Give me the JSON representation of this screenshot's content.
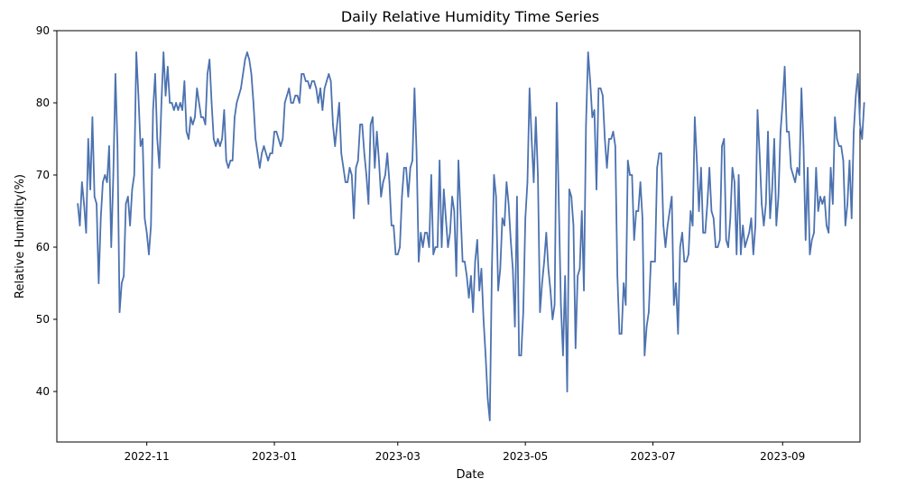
{
  "chart_data": {
    "type": "line",
    "title": "Daily Relative Humidity Time Series",
    "xlabel": "Date",
    "ylabel": "Relative Humidity(%)",
    "ylim": [
      33,
      90
    ],
    "y_ticks": [
      40,
      50,
      60,
      70,
      80,
      90
    ],
    "xlim": [
      "2022-09-19",
      "2023-10-08"
    ],
    "x_ticks": [
      {
        "date": "2022-11-01",
        "label": "2022-11"
      },
      {
        "date": "2023-01-01",
        "label": "2023-01"
      },
      {
        "date": "2023-03-01",
        "label": "2023-03"
      },
      {
        "date": "2023-05-01",
        "label": "2023-05"
      },
      {
        "date": "2023-07-01",
        "label": "2023-07"
      },
      {
        "date": "2023-09-01",
        "label": "2023-09"
      }
    ],
    "grid": false,
    "line_color": "#4c72b0",
    "series": [
      {
        "start_date": "2022-09-29",
        "values": [
          66,
          63,
          69,
          66,
          62,
          75,
          68,
          78,
          67,
          66,
          55,
          64,
          69,
          70,
          69,
          74,
          60,
          70,
          84,
          74,
          51,
          55,
          56,
          66,
          67,
          63,
          68,
          70,
          87,
          81,
          74,
          75,
          64,
          62,
          59,
          63,
          79,
          84,
          75,
          71,
          80,
          87,
          81,
          85,
          80,
          80,
          79,
          80,
          79,
          80,
          79,
          83,
          76,
          75,
          78,
          77,
          78,
          82,
          80,
          78,
          78,
          77,
          84,
          86,
          80,
          75,
          74,
          75,
          74,
          75,
          79,
          72,
          71,
          72,
          72,
          78,
          80,
          81,
          82,
          84,
          86,
          87,
          86,
          84,
          80,
          75,
          73,
          71,
          73,
          74,
          73,
          72,
          73,
          73,
          76,
          76,
          75,
          74,
          75,
          80,
          81,
          82,
          80,
          80,
          81,
          81,
          80,
          84,
          84,
          83,
          83,
          82,
          83,
          83,
          82,
          80,
          82,
          79,
          82,
          83,
          84,
          83,
          77,
          74,
          77,
          80,
          73,
          71,
          69,
          69,
          71,
          70,
          64,
          71,
          72,
          77,
          77,
          73,
          70,
          66,
          77,
          78,
          71,
          76,
          72,
          67,
          69,
          70,
          73,
          69,
          63,
          63,
          59,
          59,
          60,
          67,
          71,
          71,
          67,
          71,
          72,
          82,
          73,
          58,
          62,
          60,
          62,
          62,
          60,
          70,
          59,
          60,
          60,
          72,
          60,
          68,
          64,
          60,
          62,
          67,
          65,
          56,
          72,
          65,
          58,
          58,
          56,
          53,
          56,
          51,
          58,
          61,
          54,
          57,
          50,
          45,
          39,
          36,
          57,
          70,
          67,
          54,
          57,
          64,
          63,
          69,
          66,
          61,
          57,
          49,
          67,
          45,
          45,
          51,
          64,
          69,
          82,
          75,
          69,
          78,
          70,
          51,
          55,
          58,
          62,
          57,
          54,
          50,
          52,
          80,
          66,
          52,
          45,
          56,
          40,
          68,
          67,
          63,
          46,
          56,
          57,
          65,
          54,
          77,
          87,
          83,
          78,
          79,
          68,
          82,
          82,
          81,
          75,
          71,
          75,
          75,
          76,
          74,
          56,
          48,
          48,
          55,
          52,
          72,
          70,
          70,
          61,
          65,
          65,
          69,
          64,
          45,
          49,
          51,
          58,
          58,
          58,
          71,
          73,
          73,
          63,
          60,
          63,
          65,
          67,
          52,
          55,
          48,
          60,
          62,
          58,
          58,
          59,
          65,
          63,
          78,
          72,
          65,
          71,
          62,
          62,
          66,
          71,
          65,
          64,
          60,
          60,
          61,
          74,
          75,
          61,
          60,
          64,
          71,
          69,
          59,
          70,
          59,
          63,
          60,
          61,
          62,
          64,
          59,
          63,
          79,
          73,
          66,
          63,
          66,
          76,
          64,
          68,
          75,
          63,
          67,
          76,
          80,
          85,
          76,
          76,
          71,
          70,
          69,
          71,
          70,
          82,
          74,
          61,
          71,
          59,
          61,
          62,
          71,
          65,
          67,
          66,
          67,
          63,
          62,
          71,
          66,
          78,
          75,
          74,
          74,
          72,
          63,
          66,
          72,
          64,
          76,
          81,
          84,
          77,
          75,
          80
        ]
      }
    ]
  }
}
